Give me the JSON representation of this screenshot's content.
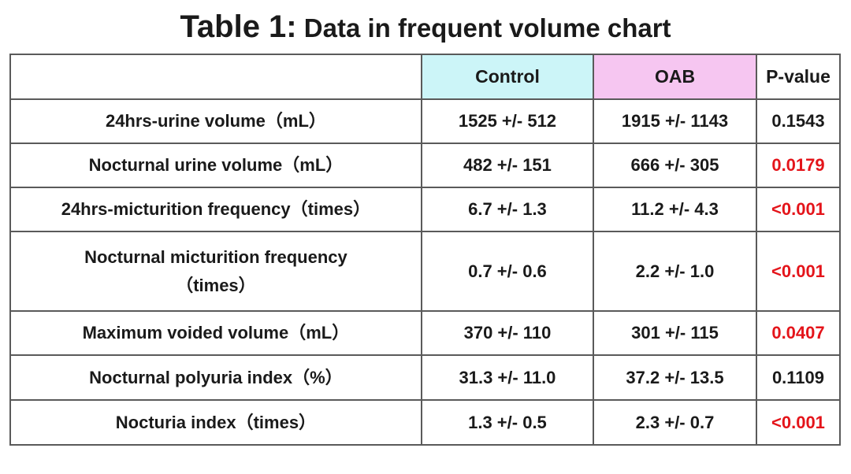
{
  "title": {
    "prefix": "Table 1:",
    "text": " Data in frequent volume chart"
  },
  "columns": {
    "label": "",
    "control": "Control",
    "oab": "OAB",
    "pvalue": "P-value"
  },
  "colors": {
    "control_header_bg": "#ccf5f8",
    "oab_header_bg": "#f6c6f1",
    "significant_p": "#e4141a"
  },
  "rows": [
    {
      "label": "24hrs-urine volume（mL）",
      "control": "1525 +/- 512",
      "oab": "1915 +/- 1143",
      "pvalue": "0.1543",
      "significant": false
    },
    {
      "label": "Nocturnal urine volume（mL）",
      "control": "482 +/- 151",
      "oab": "666 +/- 305",
      "pvalue": "0.0179",
      "significant": true
    },
    {
      "label": "24hrs-micturition frequency（times）",
      "control": "6.7 +/- 1.3",
      "oab": "11.2 +/- 4.3",
      "pvalue": "<0.001",
      "significant": true
    },
    {
      "label_line1": "Nocturnal micturition frequency",
      "label_line2": "（times）",
      "control": "0.7 +/- 0.6",
      "oab": "2.2 +/- 1.0",
      "pvalue": "<0.001",
      "significant": true
    },
    {
      "label": "Maximum voided volume（mL）",
      "control": "370 +/- 110",
      "oab": "301 +/- 115",
      "pvalue": "0.0407",
      "significant": true
    },
    {
      "label": "Nocturnal polyuria index（%）",
      "control": "31.3 +/- 11.0",
      "oab": "37.2 +/- 13.5",
      "pvalue": "0.1109",
      "significant": false
    },
    {
      "label": "Nocturia index（times）",
      "control": "1.3 +/- 0.5",
      "oab": "2.3 +/- 0.7",
      "pvalue": "<0.001",
      "significant": true
    }
  ]
}
